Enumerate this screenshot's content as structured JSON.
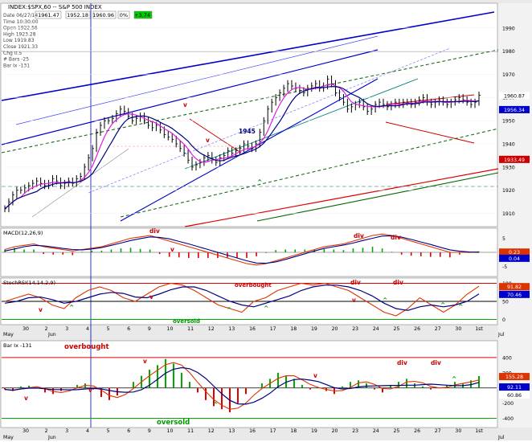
{
  "header": {
    "title": "INDEX:$SPX,60 -- S&P 500 INDEX",
    "quote_values": [
      "1961.47",
      "1952.18",
      "1960.96",
      "0%",
      "+3.74"
    ],
    "info": [
      "Date  06/27/14",
      "Time  10:30:00",
      "Open  1922.56",
      "High  1923.28",
      "Low   1919.83",
      "Close 1921.33",
      "Chg  0.5",
      "# Bars -25",
      "Bar Ix -131"
    ]
  },
  "colors": {
    "background": "#ffffff",
    "price_label": "#000000",
    "current_price_box": "#0000cc",
    "red_box": "#cc0000",
    "ma_magenta": "#e020e0",
    "ma_blue": "#000080",
    "trend_blue": "#0000ff",
    "trend_green": "#006600",
    "trend_teal": "#008080",
    "red_line": "#dd0000"
  },
  "chart_data": [
    {
      "type": "line",
      "name": "main_price",
      "title": "INDEX:$SPX,60 -- S&P 500 INDEX",
      "ylim": [
        1905,
        2000
      ],
      "yticks": [
        1910,
        1920,
        1930,
        1940,
        1950,
        1960,
        1970,
        1980,
        1990
      ],
      "right_labels": {
        "price": "1960.87",
        "ma": "1956.34",
        "red": "1933.49"
      },
      "annotations": [
        "v",
        "v",
        "1945",
        "^"
      ],
      "x": [
        0,
        1,
        2,
        3,
        4,
        5,
        6,
        7,
        8,
        9,
        10,
        11,
        12,
        13,
        14,
        15,
        16,
        17,
        18,
        19,
        20,
        21,
        22,
        23,
        24,
        25,
        26,
        27,
        28,
        29,
        30,
        31,
        32,
        33,
        34,
        35,
        36,
        37,
        38,
        39,
        40,
        41,
        42,
        43,
        44,
        45,
        46,
        47,
        48,
        49,
        50,
        51,
        52,
        53,
        54,
        55,
        56,
        57,
        58,
        59,
        60,
        61,
        62,
        63,
        64,
        65,
        66,
        67,
        68,
        69,
        70,
        71,
        72,
        73,
        74,
        75,
        76,
        77,
        78,
        79,
        80,
        81,
        82,
        83,
        84,
        85,
        86,
        87,
        88,
        89,
        90,
        91,
        92,
        93,
        94,
        95,
        96,
        97,
        98,
        99,
        100,
        101,
        102,
        103,
        104,
        105,
        106,
        107,
        108,
        109,
        110,
        111,
        112,
        113,
        114,
        115,
        116,
        117,
        118,
        119
      ],
      "close": [
        1912,
        1915,
        1918,
        1920,
        1920,
        1921,
        1922,
        1923,
        1924,
        1923,
        1922,
        1923,
        1925,
        1924,
        1922,
        1923,
        1924,
        1923,
        1925,
        1926,
        1930,
        1934,
        1938,
        1945,
        1948,
        1950,
        1950,
        1951,
        1953,
        1955,
        1954,
        1952,
        1950,
        1951,
        1952,
        1950,
        1948,
        1947,
        1948,
        1946,
        1944,
        1943,
        1942,
        1940,
        1938,
        1936,
        1933,
        1930,
        1931,
        1932,
        1934,
        1935,
        1933,
        1932,
        1934,
        1935,
        1937,
        1936,
        1937,
        1938,
        1940,
        1939,
        1938,
        1940,
        1945,
        1950,
        1955,
        1958,
        1960,
        1962,
        1964,
        1966,
        1965,
        1964,
        1963,
        1962,
        1964,
        1965,
        1966,
        1964,
        1965,
        1968,
        1966,
        1962,
        1960,
        1958,
        1955,
        1956,
        1957,
        1958,
        1956,
        1954,
        1955,
        1957,
        1958,
        1957,
        1956,
        1957,
        1958,
        1957,
        1958,
        1958,
        1957,
        1958,
        1959,
        1960,
        1958,
        1957,
        1958,
        1959,
        1958,
        1957,
        1958,
        1959,
        1960,
        1959,
        1958,
        1957,
        1958,
        1961
      ]
    },
    {
      "type": "line",
      "name": "macd",
      "title": "MACD(12,26,9)",
      "ylim": [
        -8,
        8
      ],
      "yticks": [
        5,
        0,
        -5
      ],
      "right_labels": {
        "macd": "0.23",
        "signal": "0.04"
      },
      "annotations": [
        "div",
        "v",
        "div",
        "div"
      ],
      "macd": [
        1,
        2,
        2.5,
        3,
        2,
        1.5,
        1,
        0.5,
        1,
        1.5,
        2,
        3,
        4,
        5,
        5.5,
        6,
        5,
        4,
        3,
        2,
        1,
        0,
        -1,
        -2,
        -3,
        -4,
        -4.5,
        -4,
        -3,
        -2,
        -1,
        0,
        1,
        2,
        2.5,
        3,
        4,
        5,
        6,
        6.5,
        6,
        5,
        4,
        3,
        2,
        1,
        0,
        0,
        0,
        0.2
      ],
      "signal": [
        0.5,
        1.2,
        2,
        2.5,
        2.3,
        1.9,
        1.4,
        1,
        0.9,
        1.2,
        1.7,
        2.5,
        3.3,
        4.2,
        4.9,
        5.5,
        5.3,
        4.8,
        3.9,
        3,
        2,
        1,
        0,
        -1,
        -2,
        -3,
        -3.8,
        -3.9,
        -3.4,
        -2.5,
        -1.5,
        -0.5,
        0.5,
        1.4,
        2,
        2.6,
        3.3,
        4.2,
        5,
        5.8,
        5.9,
        5.4,
        4.6,
        3.7,
        2.8,
        1.8,
        0.9,
        0.4,
        0.1,
        0.04
      ]
    },
    {
      "type": "line",
      "name": "stoch_rsi",
      "title": "StochRSI(14,14,2,9)",
      "ylim": [
        -10,
        110
      ],
      "yticks": [
        100,
        50,
        0
      ],
      "right_labels": {
        "k": "91.82",
        "d": "70.46"
      },
      "annotations": [
        "overbought",
        "oversold",
        "div",
        "div",
        "v",
        "v",
        "v",
        "^",
        "^",
        "^",
        "^",
        "^",
        "^"
      ],
      "k": [
        50,
        60,
        70,
        60,
        40,
        30,
        60,
        80,
        90,
        80,
        60,
        50,
        70,
        90,
        100,
        95,
        80,
        60,
        40,
        30,
        20,
        50,
        60,
        80,
        90,
        100,
        95,
        100,
        90,
        80,
        60,
        40,
        20,
        10,
        30,
        60,
        40,
        20,
        40,
        70,
        91.82
      ],
      "d": [
        45,
        50,
        60,
        62,
        55,
        45,
        50,
        60,
        70,
        75,
        72,
        62,
        60,
        70,
        82,
        90,
        90,
        80,
        65,
        50,
        40,
        35,
        45,
        55,
        65,
        80,
        90,
        95,
        95,
        90,
        80,
        65,
        45,
        30,
        25,
        35,
        40,
        35,
        40,
        50,
        70.46
      ]
    },
    {
      "type": "bar",
      "name": "bar_ix",
      "title": "Bar Ix -131",
      "ylim": [
        -500,
        600
      ],
      "yticks": [
        400,
        200,
        0,
        -200,
        -400
      ],
      "right_labels": {
        "a": "155.28",
        "b": "92.11",
        "c": "60.86"
      },
      "annotations": [
        "overbought",
        "oversold",
        "v",
        "v",
        "v",
        "v",
        "div",
        "div",
        "^",
        "^"
      ],
      "values": [
        -20,
        -40,
        20,
        30,
        0,
        -60,
        -80,
        -40,
        0,
        40,
        60,
        -20,
        -120,
        -160,
        -100,
        0,
        80,
        160,
        240,
        300,
        380,
        320,
        200,
        80,
        -60,
        -160,
        -240,
        -280,
        -320,
        -200,
        -80,
        0,
        60,
        120,
        200,
        160,
        120,
        40,
        -20,
        0,
        -40,
        -80,
        20,
        80,
        100,
        60,
        -20,
        -60,
        40,
        80,
        120,
        60,
        20,
        -20,
        0,
        40,
        80,
        60,
        100,
        155
      ]
    }
  ],
  "x_axis": {
    "labels": [
      "30",
      "2",
      "3",
      "4",
      "5",
      "6",
      "9",
      "10",
      "11",
      "12",
      "13",
      "16",
      "17",
      "18",
      "19",
      "20",
      "23",
      "24",
      "25",
      "26",
      "27",
      "30",
      "1st"
    ],
    "month_labels": [
      "May",
      "Jun",
      "Jul"
    ]
  }
}
